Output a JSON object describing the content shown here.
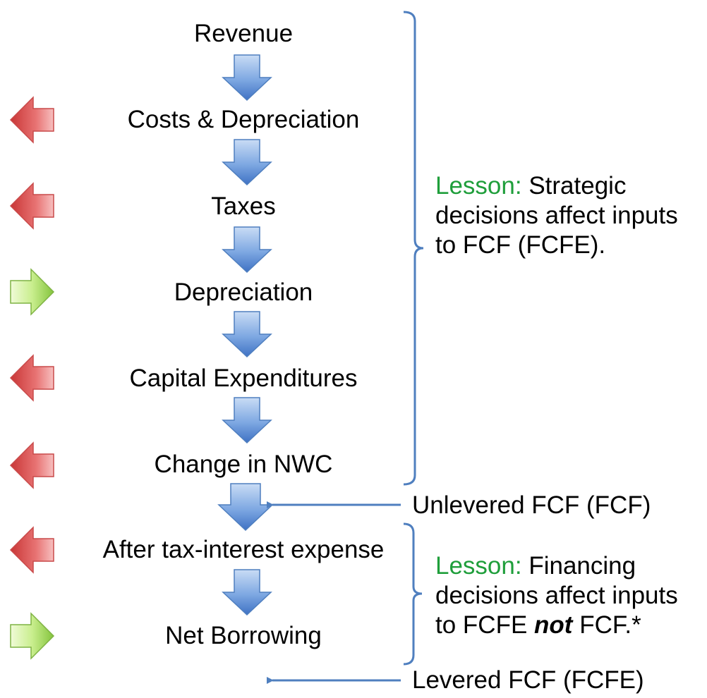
{
  "steps": [
    {
      "label": "Revenue",
      "side": "none"
    },
    {
      "label": "Costs & Depreciation",
      "side": "minus"
    },
    {
      "label": "Taxes",
      "side": "minus"
    },
    {
      "label": "Depreciation",
      "side": "plus"
    },
    {
      "label": "Capital Expenditures",
      "side": "minus"
    },
    {
      "label": "Change in NWC",
      "side": "minus"
    },
    {
      "label": "After tax-interest expense",
      "side": "minus"
    },
    {
      "label": "Net Borrowing",
      "side": "plus"
    }
  ],
  "lesson1": {
    "keyword": "Lesson:",
    "line1": "Strategic",
    "line2": "decisions affect inputs",
    "line3": "to FCF (FCFE)."
  },
  "lesson2": {
    "keyword": "Lesson:",
    "line1": "Financing",
    "line2": "decisions affect inputs",
    "line3_pre": "to FCFE",
    "line3_em": "not",
    "line3_post": "FCF.*"
  },
  "outputs": {
    "unlevered": "Unlevered FCF (FCF)",
    "levered": "Levered FCF (FCFE)"
  },
  "colors": {
    "flow_arrow": "#5b8fd6",
    "minus_arrow": "#d94a4a",
    "plus_arrow": "#98d450",
    "bracket": "#4f7fbf",
    "lesson_keyword": "#1f9e3b"
  }
}
